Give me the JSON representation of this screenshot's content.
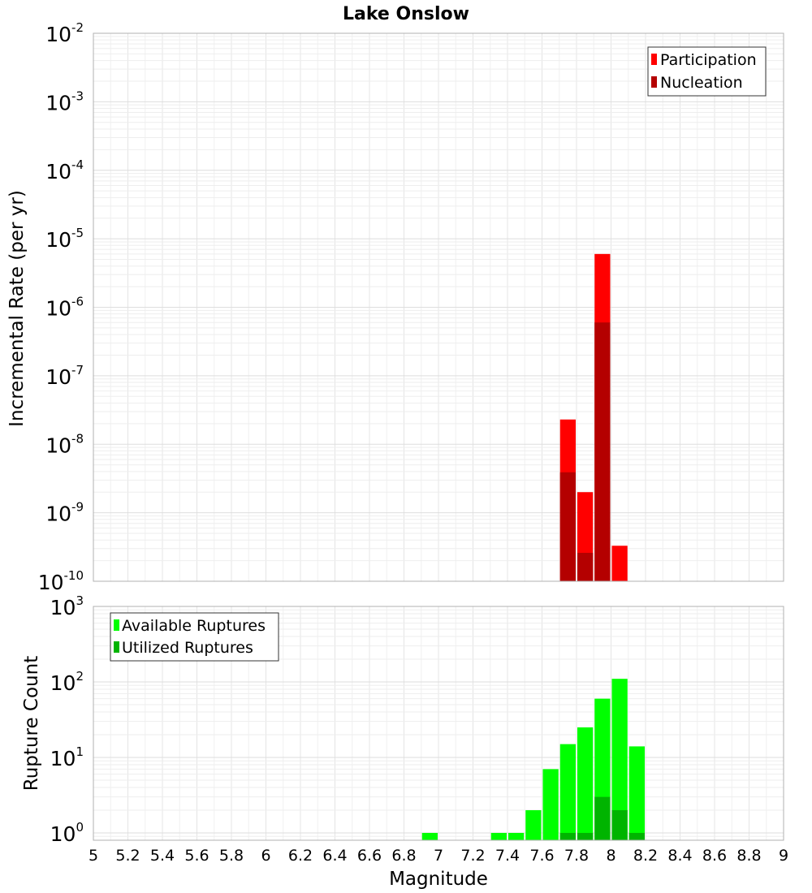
{
  "chart_data": [
    {
      "type": "bar",
      "title": "Lake Onslow",
      "xlabel": "",
      "ylabel": "Incremental Rate (per yr)",
      "yscale": "log",
      "ylim": [
        1e-10,
        0.01
      ],
      "xlim": [
        5,
        9
      ],
      "bin_width": 0.1,
      "grid": true,
      "legend_position": "top-right",
      "y_ticks": [
        {
          "base": "10",
          "exp": "-2",
          "value": 0.01
        },
        {
          "base": "10",
          "exp": "-3",
          "value": 0.001
        },
        {
          "base": "10",
          "exp": "-4",
          "value": 0.0001
        },
        {
          "base": "10",
          "exp": "-5",
          "value": 1e-05
        },
        {
          "base": "10",
          "exp": "-6",
          "value": 1e-06
        },
        {
          "base": "10",
          "exp": "-7",
          "value": 1e-07
        },
        {
          "base": "10",
          "exp": "-8",
          "value": 1e-08
        },
        {
          "base": "10",
          "exp": "-9",
          "value": 1e-09
        },
        {
          "base": "10",
          "exp": "-10",
          "value": 1e-10
        }
      ],
      "series": [
        {
          "name": "Participation",
          "color": "#ff0000",
          "x": [
            7.75,
            7.85,
            7.95,
            8.05
          ],
          "values": [
            2.3e-08,
            2e-09,
            6e-06,
            3.3e-10
          ]
        },
        {
          "name": "Nucleation",
          "color": "#b40000",
          "x": [
            7.75,
            7.85,
            7.95
          ],
          "values": [
            3.9e-09,
            2.6e-10,
            6e-07
          ]
        }
      ]
    },
    {
      "type": "bar",
      "title": "",
      "xlabel": "Magnitude",
      "ylabel": "Rupture Count",
      "yscale": "log",
      "ylim": [
        0.8,
        1000
      ],
      "xlim": [
        5,
        9
      ],
      "bin_width": 0.1,
      "grid": true,
      "legend_position": "top-left",
      "x_ticks": [
        "5",
        "5.2",
        "5.4",
        "5.6",
        "5.8",
        "6",
        "6.2",
        "6.4",
        "6.6",
        "6.8",
        "7",
        "7.2",
        "7.4",
        "7.6",
        "7.8",
        "8",
        "8.2",
        "8.4",
        "8.6",
        "8.8",
        "9"
      ],
      "y_ticks": [
        {
          "base": "10",
          "exp": "3",
          "value": 1000
        },
        {
          "base": "10",
          "exp": "2",
          "value": 100
        },
        {
          "base": "10",
          "exp": "1",
          "value": 10
        },
        {
          "base": "10",
          "exp": "0",
          "value": 1
        }
      ],
      "series": [
        {
          "name": "Available Ruptures",
          "color": "#00ff00",
          "x": [
            6.95,
            7.35,
            7.45,
            7.55,
            7.65,
            7.75,
            7.85,
            7.95,
            8.05,
            8.15
          ],
          "values": [
            1,
            1,
            1,
            2,
            7,
            15,
            25,
            60,
            110,
            14
          ]
        },
        {
          "name": "Utilized Ruptures",
          "color": "#00b400",
          "x": [
            7.75,
            7.85,
            7.95,
            8.05,
            8.15
          ],
          "values": [
            1,
            1,
            3,
            2,
            1
          ]
        }
      ]
    }
  ]
}
